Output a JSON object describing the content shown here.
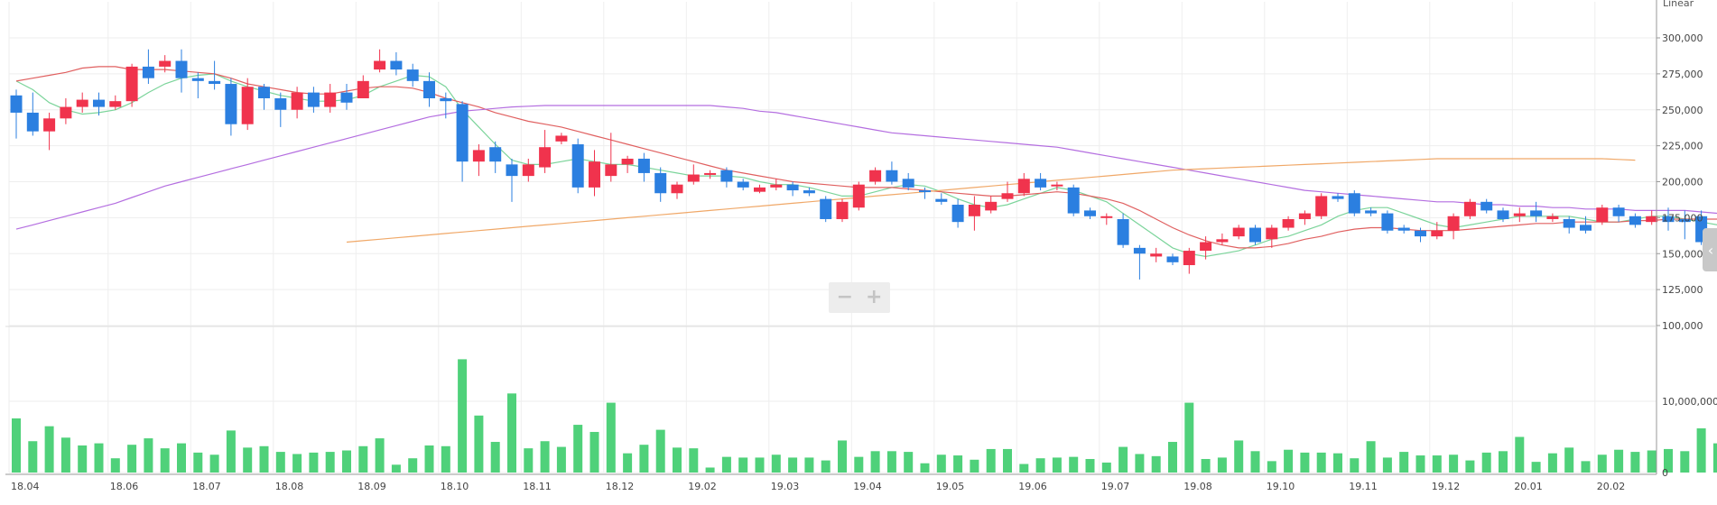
{
  "scale_label": "Linear",
  "zoom": {
    "minus": "−",
    "plus": "+"
  },
  "side_toggle": "‹",
  "colors": {
    "up": "#f0334d",
    "down": "#2b7fe0",
    "volume": "#4fd17a",
    "ma5": "#7bd49a",
    "ma20": "#e06060",
    "ma60": "#b46ee0",
    "ma120": "#f0a868",
    "grid": "#eeeeee",
    "axis": "#999999"
  },
  "chart_data": {
    "type": "candlestick",
    "price_ylim": [
      100000,
      300000
    ],
    "price_ticks": [
      "300,000",
      "275,000",
      "250,000",
      "225,000",
      "200,000",
      "175,000",
      "150,000",
      "125,000",
      "100,000"
    ],
    "volume_ylim": [
      0,
      20000000
    ],
    "volume_ticks": [
      "10,000,000",
      "0"
    ],
    "xlabels": [
      {
        "label": "18.04",
        "i": 0
      },
      {
        "label": "18.06",
        "i": 6
      },
      {
        "label": "18.07",
        "i": 11
      },
      {
        "label": "18.08",
        "i": 16
      },
      {
        "label": "18.09",
        "i": 21
      },
      {
        "label": "18.10",
        "i": 26
      },
      {
        "label": "18.11",
        "i": 31
      },
      {
        "label": "18.12",
        "i": 36
      },
      {
        "label": "19.02",
        "i": 41
      },
      {
        "label": "19.03",
        "i": 46
      },
      {
        "label": "19.04",
        "i": 51
      },
      {
        "label": "19.05",
        "i": 56
      },
      {
        "label": "19.06",
        "i": 61
      },
      {
        "label": "19.07",
        "i": 66
      },
      {
        "label": "19.08",
        "i": 71
      },
      {
        "label": "19.10",
        "i": 76
      },
      {
        "label": "19.11",
        "i": 81
      },
      {
        "label": "19.12",
        "i": 86
      },
      {
        "label": "20.01",
        "i": 91
      },
      {
        "label": "20.02",
        "i": 96
      }
    ],
    "candles": [
      [
        260000,
        248000,
        264000,
        230000
      ],
      [
        248000,
        235000,
        262000,
        232000
      ],
      [
        235000,
        244000,
        248000,
        222000
      ],
      [
        244000,
        252000,
        258000,
        240000
      ],
      [
        252000,
        257000,
        262000,
        248000
      ],
      [
        257000,
        252000,
        262000,
        246000
      ],
      [
        252000,
        256000,
        260000,
        250000
      ],
      [
        256000,
        280000,
        282000,
        252000
      ],
      [
        280000,
        272000,
        292000,
        268000
      ],
      [
        280000,
        284000,
        288000,
        276000
      ],
      [
        284000,
        272000,
        292000,
        262000
      ],
      [
        272000,
        270000,
        276000,
        258000
      ],
      [
        270000,
        268000,
        284000,
        264000
      ],
      [
        268000,
        240000,
        272000,
        232000
      ],
      [
        240000,
        266000,
        272000,
        236000
      ],
      [
        266000,
        258000,
        268000,
        250000
      ],
      [
        258000,
        250000,
        262000,
        238000
      ],
      [
        250000,
        262000,
        266000,
        244000
      ],
      [
        262000,
        252000,
        266000,
        248000
      ],
      [
        252000,
        262000,
        268000,
        248000
      ],
      [
        262000,
        255000,
        268000,
        250000
      ],
      [
        258000,
        270000,
        274000,
        258000
      ],
      [
        278000,
        284000,
        292000,
        276000
      ],
      [
        284000,
        278000,
        290000,
        274000
      ],
      [
        278000,
        270000,
        282000,
        266000
      ],
      [
        270000,
        258000,
        276000,
        252000
      ],
      [
        258000,
        256000,
        262000,
        244000
      ],
      [
        254000,
        214000,
        256000,
        200000
      ],
      [
        214000,
        222000,
        226000,
        204000
      ],
      [
        224000,
        214000,
        228000,
        206000
      ],
      [
        212000,
        204000,
        216000,
        186000
      ],
      [
        204000,
        212000,
        216000,
        200000
      ],
      [
        210000,
        224000,
        236000,
        206000
      ],
      [
        228000,
        232000,
        234000,
        226000
      ],
      [
        226000,
        196000,
        230000,
        192000
      ],
      [
        196000,
        214000,
        222000,
        190000
      ],
      [
        204000,
        212000,
        234000,
        200000
      ],
      [
        212000,
        216000,
        218000,
        206000
      ],
      [
        216000,
        206000,
        220000,
        200000
      ],
      [
        206000,
        192000,
        210000,
        186000
      ],
      [
        192000,
        198000,
        200000,
        188000
      ],
      [
        200000,
        205000,
        212000,
        198000
      ],
      [
        205000,
        206000,
        208000,
        202000
      ],
      [
        208000,
        200000,
        210000,
        196000
      ],
      [
        200000,
        196000,
        202000,
        194000
      ],
      [
        193000,
        196000,
        198000,
        192000
      ],
      [
        196000,
        198000,
        202000,
        194000
      ],
      [
        198000,
        194000,
        200000,
        190000
      ],
      [
        194000,
        192000,
        196000,
        190000
      ],
      [
        188000,
        174000,
        190000,
        172000
      ],
      [
        174000,
        186000,
        188000,
        172000
      ],
      [
        182000,
        198000,
        200000,
        180000
      ],
      [
        200000,
        208000,
        210000,
        198000
      ],
      [
        208000,
        200000,
        214000,
        198000
      ],
      [
        202000,
        196000,
        206000,
        194000
      ],
      [
        194000,
        193000,
        196000,
        188000
      ],
      [
        188000,
        186000,
        192000,
        184000
      ],
      [
        184000,
        172000,
        188000,
        168000
      ],
      [
        176000,
        184000,
        190000,
        166000
      ],
      [
        180000,
        186000,
        190000,
        178000
      ],
      [
        188000,
        192000,
        200000,
        186000
      ],
      [
        192000,
        202000,
        206000,
        190000
      ],
      [
        202000,
        196000,
        206000,
        194000
      ],
      [
        198000,
        198000,
        200000,
        194000
      ],
      [
        196000,
        178000,
        198000,
        176000
      ],
      [
        180000,
        176000,
        182000,
        174000
      ],
      [
        176000,
        176000,
        178000,
        170000
      ],
      [
        174000,
        156000,
        178000,
        154000
      ],
      [
        154000,
        150000,
        156000,
        132000
      ],
      [
        148000,
        150000,
        154000,
        144000
      ],
      [
        148000,
        144000,
        150000,
        142000
      ],
      [
        142000,
        152000,
        154000,
        136000
      ],
      [
        152000,
        158000,
        162000,
        146000
      ],
      [
        158000,
        160000,
        164000,
        156000
      ],
      [
        162000,
        168000,
        170000,
        160000
      ],
      [
        168000,
        158000,
        170000,
        156000
      ],
      [
        160000,
        168000,
        170000,
        154000
      ],
      [
        168000,
        174000,
        176000,
        166000
      ],
      [
        174000,
        178000,
        180000,
        170000
      ],
      [
        176000,
        190000,
        192000,
        174000
      ],
      [
        190000,
        188000,
        192000,
        186000
      ],
      [
        192000,
        178000,
        194000,
        176000
      ],
      [
        180000,
        178000,
        182000,
        176000
      ],
      [
        178000,
        166000,
        180000,
        164000
      ],
      [
        168000,
        166000,
        170000,
        164000
      ],
      [
        166000,
        162000,
        168000,
        158000
      ],
      [
        162000,
        166000,
        172000,
        160000
      ],
      [
        166000,
        176000,
        178000,
        160000
      ],
      [
        176000,
        186000,
        188000,
        174000
      ],
      [
        186000,
        180000,
        188000,
        178000
      ],
      [
        180000,
        174000,
        182000,
        172000
      ],
      [
        176000,
        178000,
        182000,
        172000
      ],
      [
        180000,
        176000,
        186000,
        172000
      ],
      [
        174000,
        176000,
        178000,
        172000
      ],
      [
        174000,
        168000,
        176000,
        164000
      ],
      [
        170000,
        166000,
        176000,
        164000
      ],
      [
        172000,
        182000,
        184000,
        170000
      ],
      [
        182000,
        176000,
        184000,
        172000
      ],
      [
        176000,
        170000,
        178000,
        168000
      ],
      [
        172000,
        176000,
        180000,
        170000
      ],
      [
        176000,
        172000,
        182000,
        166000
      ],
      [
        174000,
        172000,
        180000,
        160000
      ],
      [
        176000,
        158000,
        180000,
        156000
      ]
    ],
    "volume": [
      7600000,
      4400000,
      6500000,
      4900000,
      3800000,
      4100000,
      2000000,
      3900000,
      4800000,
      3400000,
      4100000,
      2800000,
      2500000,
      5900000,
      3500000,
      3700000,
      2900000,
      2600000,
      2800000,
      2900000,
      3100000,
      3700000,
      4800000,
      1100000,
      2000000,
      3800000,
      3700000,
      15900000,
      8000000,
      4300000,
      11100000,
      3400000,
      4400000,
      3600000,
      6700000,
      5700000,
      9800000,
      2700000,
      3900000,
      6000000,
      3500000,
      3400000,
      700000,
      2200000,
      2100000,
      2100000,
      2500000,
      2100000,
      2100000,
      1700000,
      4500000,
      2200000,
      3000000,
      3000000,
      2900000,
      1300000,
      2500000,
      2400000,
      1800000,
      3300000,
      3300000,
      1200000,
      2000000,
      2100000,
      2200000,
      1900000,
      1400000,
      3600000,
      2600000,
      2300000,
      4300000,
      9800000,
      1900000,
      2100000,
      4500000,
      3000000,
      1600000,
      3200000,
      2800000,
      2800000,
      2700000,
      2000000,
      4400000,
      2100000,
      2900000,
      2400000,
      2400000,
      2500000,
      1700000,
      2800000,
      3000000,
      5000000,
      1500000,
      2700000,
      3500000,
      1600000,
      2500000,
      3200000,
      2900000,
      3100000,
      3300000,
      3000000,
      6200000,
      4100000
    ],
    "series": [
      {
        "name": "ma5",
        "start": 0,
        "values": [
          270000,
          264000,
          255000,
          250000,
          247000,
          248000,
          250000,
          255000,
          262000,
          268000,
          272000,
          274000,
          275000,
          270000,
          266000,
          263000,
          260000,
          258000,
          256000,
          256000,
          257000,
          260000,
          266000,
          270000,
          274000,
          273000,
          266000,
          250000,
          238000,
          226000,
          215000,
          212000,
          212000,
          214000,
          216000,
          214000,
          212000,
          212000,
          210000,
          208000,
          206000,
          204000,
          204000,
          204000,
          203000,
          200000,
          198000,
          198000,
          196000,
          193000,
          190000,
          190000,
          193000,
          196000,
          198000,
          197000,
          193000,
          188000,
          184000,
          182000,
          184000,
          188000,
          192000,
          196000,
          194000,
          190000,
          186000,
          178000,
          170000,
          162000,
          154000,
          150000,
          148000,
          150000,
          152000,
          156000,
          160000,
          162000,
          166000,
          170000,
          176000,
          180000,
          182000,
          182000,
          178000,
          174000,
          170000,
          168000,
          170000,
          172000,
          174000,
          176000,
          176000,
          176000,
          176000,
          174000,
          172000,
          172000,
          174000,
          176000,
          176000,
          174000,
          172000,
          170000
        ]
      },
      {
        "name": "ma20",
        "start": 0,
        "values": [
          270000,
          272000,
          274000,
          276000,
          279000,
          280000,
          280000,
          278000,
          278000,
          278000,
          277000,
          276000,
          275000,
          272000,
          268000,
          266000,
          264000,
          262000,
          261000,
          261000,
          263000,
          265000,
          266000,
          266000,
          265000,
          262000,
          258000,
          255000,
          252000,
          248000,
          245000,
          242000,
          240000,
          238000,
          235000,
          232000,
          229000,
          226000,
          223000,
          220000,
          217000,
          214000,
          211000,
          208000,
          206000,
          204000,
          202000,
          200000,
          199000,
          198000,
          197000,
          196000,
          196000,
          196000,
          195000,
          194000,
          193000,
          192000,
          191000,
          190000,
          190000,
          191000,
          192000,
          193000,
          192000,
          190000,
          188000,
          185000,
          180000,
          174000,
          168000,
          163000,
          159000,
          156000,
          154000,
          154000,
          155000,
          157000,
          160000,
          162000,
          165000,
          167000,
          168000,
          168000,
          167000,
          166000,
          166000,
          166000,
          167000,
          168000,
          169000,
          170000,
          171000,
          171000,
          172000,
          172000,
          172000,
          172000,
          173000,
          173000,
          174000,
          174000,
          174000,
          174000
        ]
      },
      {
        "name": "ma60",
        "start": 0,
        "values": [
          167000,
          170000,
          173000,
          176000,
          179000,
          182000,
          185000,
          189000,
          193000,
          197000,
          200000,
          203000,
          206000,
          209000,
          212000,
          215000,
          218000,
          221000,
          224000,
          227000,
          230000,
          233000,
          236000,
          239000,
          242000,
          245000,
          247000,
          249000,
          250000,
          251000,
          252000,
          252500,
          253000,
          253000,
          253000,
          253000,
          253000,
          253000,
          253000,
          253000,
          253000,
          253000,
          253000,
          252000,
          251000,
          249000,
          248000,
          246000,
          244000,
          242000,
          240000,
          238000,
          236000,
          234000,
          233000,
          232000,
          231000,
          230000,
          229000,
          228000,
          227000,
          226000,
          225000,
          224000,
          222000,
          220000,
          218000,
          216000,
          214000,
          212000,
          210000,
          208000,
          206000,
          204000,
          202000,
          200000,
          198000,
          196000,
          194000,
          193000,
          192000,
          191000,
          190000,
          189000,
          188000,
          187000,
          186000,
          186000,
          185000,
          184000,
          184000,
          183000,
          183000,
          182000,
          182000,
          181000,
          181000,
          181000,
          180000,
          180000,
          180000,
          180000,
          179000,
          178000
        ]
      },
      {
        "name": "ma120",
        "start": 20,
        "values": [
          158000,
          159000,
          160000,
          161000,
          162000,
          163000,
          164000,
          165000,
          166000,
          167000,
          168000,
          169000,
          170000,
          171000,
          172000,
          173000,
          174000,
          175000,
          176000,
          177000,
          178000,
          179000,
          180000,
          181000,
          182000,
          183000,
          184000,
          185000,
          186000,
          187000,
          188000,
          189000,
          190000,
          191000,
          192000,
          193000,
          194000,
          195000,
          196000,
          197000,
          198000,
          199000,
          200000,
          201000,
          202000,
          203000,
          204000,
          205000,
          206000,
          207000,
          208000,
          208500,
          209000,
          209500,
          210000,
          210500,
          211000,
          211500,
          212000,
          212500,
          213000,
          213500,
          214000,
          214500,
          215000,
          215500,
          216000,
          216000,
          216000,
          216000,
          216000,
          216000,
          216000,
          216000,
          216000,
          216000,
          216000,
          215500,
          215000
        ]
      }
    ]
  }
}
